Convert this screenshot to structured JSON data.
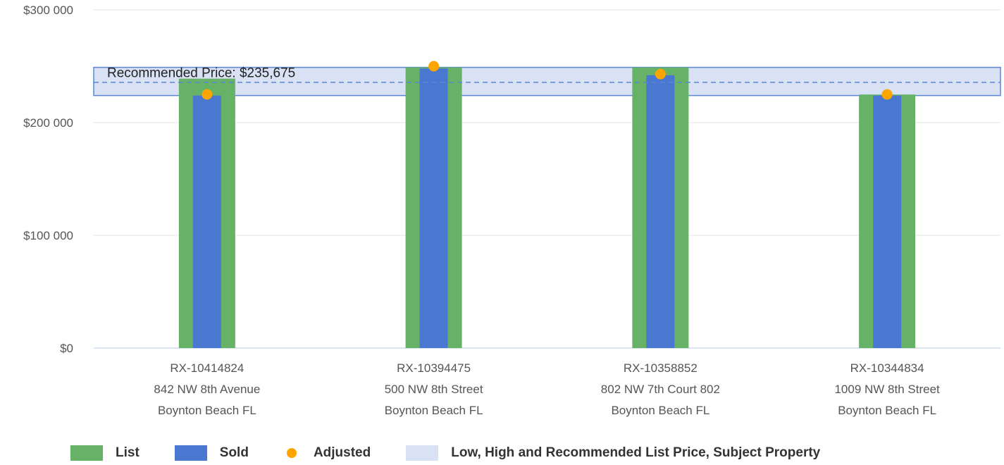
{
  "chart_data": {
    "type": "bar",
    "categories": [
      {
        "id": "RX-10414824",
        "address": "842 NW 8th Avenue",
        "city": "Boynton Beach FL"
      },
      {
        "id": "RX-10394475",
        "address": "500 NW 8th Street",
        "city": "Boynton Beach FL"
      },
      {
        "id": "RX-10358852",
        "address": "802 NW 7th Court 802",
        "city": "Boynton Beach FL"
      },
      {
        "id": "RX-10344834",
        "address": "1009 NW 8th Street",
        "city": "Boynton Beach FL"
      }
    ],
    "series": [
      {
        "name": "List",
        "values": [
          239000,
          249000,
          249000,
          224900
        ]
      },
      {
        "name": "Sold",
        "values": [
          224000,
          248000,
          242000,
          224000
        ]
      },
      {
        "name": "Adjusted",
        "values": [
          225000,
          250000,
          243000,
          225000
        ]
      }
    ],
    "band": {
      "low": 224000,
      "high": 249000,
      "recommended": 235675
    },
    "recommended_label": "Recommended Price: $235,675",
    "ylim": [
      0,
      300000
    ],
    "yticks": [
      {
        "value": 0,
        "label": "$0"
      },
      {
        "value": 100000,
        "label": "$100 000"
      },
      {
        "value": 200000,
        "label": "$200 000"
      },
      {
        "value": 300000,
        "label": "$300 000"
      }
    ],
    "grid": true,
    "legend_position": "bottom-left"
  },
  "legend": [
    {
      "label": "List",
      "kind": "swatch",
      "color": "#66b266"
    },
    {
      "label": "Sold",
      "kind": "swatch",
      "color": "#4a78d0"
    },
    {
      "label": "Adjusted",
      "kind": "dot",
      "color": "#ffa500"
    },
    {
      "label": "Low, High and Recommended List Price, Subject Property",
      "kind": "swatch",
      "color": "#d9e1f4"
    }
  ],
  "colors": {
    "list": "#66b266",
    "sold": "#4a78d0",
    "adjusted": "#ffa500",
    "band_fill": "#d9e1f4",
    "band_stroke": "#5b85d6",
    "grid": "#e6e6e6",
    "axis": "#b8c8e8"
  }
}
